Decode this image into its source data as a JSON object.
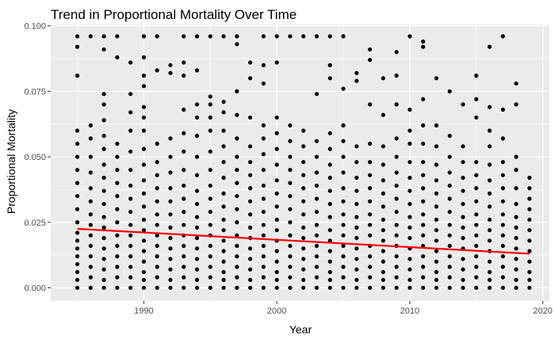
{
  "chart_data": {
    "type": "scatter",
    "title": "Trend in Proportional Mortality Over Time",
    "xlabel": "Year",
    "ylabel": "Proportional Mortality",
    "xlim": [
      1983,
      2020.5
    ],
    "ylim": [
      -0.005,
      0.1005
    ],
    "x_ticks": [
      1990,
      2000,
      2010,
      2020
    ],
    "x_tick_labels": [
      "1990",
      "2000",
      "2010",
      "2020"
    ],
    "y_ticks": [
      0.0,
      0.025,
      0.05,
      0.075,
      0.1
    ],
    "y_tick_labels": [
      "0.000",
      "0.025",
      "0.050",
      "0.075",
      "0.100"
    ],
    "grid": true,
    "legend": "none",
    "years": [
      1985,
      1986,
      1987,
      1988,
      1989,
      1990,
      1991,
      1992,
      1993,
      1994,
      1995,
      1996,
      1997,
      1998,
      1999,
      2000,
      2001,
      2002,
      2003,
      2004,
      2005,
      2006,
      2007,
      2008,
      2009,
      2010,
      2011,
      2012,
      2013,
      2014,
      2015,
      2016,
      2017,
      2018,
      2019
    ],
    "series": [
      {
        "values_by_year": [
          [
            0.0,
            0.003,
            0.006,
            0.009,
            0.012,
            0.015,
            0.018,
            0.021,
            0.025,
            0.03,
            0.035,
            0.04,
            0.045,
            0.05,
            0.055,
            0.06,
            0.081,
            0.092,
            0.096
          ],
          [
            0.0,
            0.004,
            0.008,
            0.012,
            0.016,
            0.02,
            0.024,
            0.028,
            0.033,
            0.038,
            0.044,
            0.05,
            0.057,
            0.062,
            0.096
          ],
          [
            0.0,
            0.003,
            0.007,
            0.011,
            0.015,
            0.019,
            0.023,
            0.027,
            0.032,
            0.037,
            0.042,
            0.047,
            0.053,
            0.058,
            0.064,
            0.07,
            0.074,
            0.091,
            0.096
          ],
          [
            0.0,
            0.004,
            0.008,
            0.012,
            0.016,
            0.02,
            0.025,
            0.03,
            0.035,
            0.04,
            0.045,
            0.05,
            0.055,
            0.088,
            0.096
          ],
          [
            0.0,
            0.004,
            0.008,
            0.012,
            0.016,
            0.02,
            0.024,
            0.029,
            0.034,
            0.039,
            0.045,
            0.052,
            0.06,
            0.067,
            0.074,
            0.086
          ],
          [
            0.0,
            0.003,
            0.006,
            0.01,
            0.014,
            0.018,
            0.022,
            0.026,
            0.031,
            0.036,
            0.041,
            0.047,
            0.053,
            0.06,
            0.065,
            0.069,
            0.077,
            0.081,
            0.088,
            0.096
          ],
          [
            0.0,
            0.004,
            0.008,
            0.012,
            0.016,
            0.02,
            0.024,
            0.028,
            0.033,
            0.038,
            0.043,
            0.048,
            0.055,
            0.083,
            0.096
          ],
          [
            0.0,
            0.003,
            0.007,
            0.011,
            0.015,
            0.019,
            0.023,
            0.028,
            0.033,
            0.038,
            0.044,
            0.05,
            0.057,
            0.085,
            0.082
          ],
          [
            0.0,
            0.004,
            0.008,
            0.012,
            0.016,
            0.02,
            0.024,
            0.029,
            0.034,
            0.039,
            0.045,
            0.052,
            0.059,
            0.068,
            0.081,
            0.086,
            0.096
          ],
          [
            0.0,
            0.003,
            0.007,
            0.011,
            0.015,
            0.019,
            0.023,
            0.027,
            0.032,
            0.037,
            0.043,
            0.05,
            0.058,
            0.065,
            0.07,
            0.083,
            0.096
          ],
          [
            0.0,
            0.004,
            0.008,
            0.012,
            0.016,
            0.02,
            0.024,
            0.029,
            0.034,
            0.039,
            0.045,
            0.052,
            0.06,
            0.065,
            0.07,
            0.073,
            0.096
          ],
          [
            0.0,
            0.003,
            0.006,
            0.01,
            0.014,
            0.018,
            0.022,
            0.026,
            0.031,
            0.036,
            0.042,
            0.048,
            0.054,
            0.06,
            0.067,
            0.071,
            0.096
          ],
          [
            0.0,
            0.004,
            0.008,
            0.012,
            0.016,
            0.02,
            0.025,
            0.03,
            0.035,
            0.04,
            0.045,
            0.05,
            0.057,
            0.066,
            0.075,
            0.093,
            0.096
          ],
          [
            0.0,
            0.003,
            0.007,
            0.011,
            0.015,
            0.019,
            0.023,
            0.028,
            0.033,
            0.038,
            0.043,
            0.048,
            0.054,
            0.065,
            0.08,
            0.086
          ],
          [
            0.0,
            0.004,
            0.008,
            0.012,
            0.016,
            0.02,
            0.024,
            0.029,
            0.034,
            0.039,
            0.045,
            0.051,
            0.057,
            0.062,
            0.078,
            0.085,
            0.096
          ],
          [
            0.0,
            0.003,
            0.006,
            0.01,
            0.014,
            0.018,
            0.022,
            0.026,
            0.031,
            0.036,
            0.041,
            0.047,
            0.053,
            0.059,
            0.065,
            0.086,
            0.096
          ],
          [
            0.0,
            0.004,
            0.008,
            0.012,
            0.016,
            0.02,
            0.025,
            0.03,
            0.035,
            0.04,
            0.045,
            0.05,
            0.056,
            0.062,
            0.096
          ],
          [
            0.0,
            0.003,
            0.007,
            0.011,
            0.015,
            0.019,
            0.023,
            0.028,
            0.033,
            0.038,
            0.043,
            0.048,
            0.054,
            0.06,
            0.096
          ],
          [
            0.0,
            0.004,
            0.008,
            0.012,
            0.016,
            0.02,
            0.024,
            0.029,
            0.034,
            0.039,
            0.044,
            0.05,
            0.056,
            0.074,
            0.096
          ],
          [
            0.0,
            0.003,
            0.006,
            0.01,
            0.014,
            0.018,
            0.022,
            0.027,
            0.032,
            0.037,
            0.042,
            0.047,
            0.053,
            0.059,
            0.08,
            0.085,
            0.096
          ],
          [
            0.0,
            0.004,
            0.008,
            0.012,
            0.016,
            0.02,
            0.024,
            0.028,
            0.033,
            0.038,
            0.044,
            0.05,
            0.056,
            0.062,
            0.076,
            0.096
          ],
          [
            0.0,
            0.003,
            0.007,
            0.011,
            0.015,
            0.019,
            0.023,
            0.027,
            0.032,
            0.037,
            0.042,
            0.048,
            0.054,
            0.079,
            0.082
          ],
          [
            0.0,
            0.004,
            0.008,
            0.012,
            0.016,
            0.02,
            0.024,
            0.028,
            0.033,
            0.038,
            0.043,
            0.048,
            0.055,
            0.07,
            0.087,
            0.091
          ],
          [
            0.0,
            0.003,
            0.006,
            0.01,
            0.014,
            0.018,
            0.022,
            0.026,
            0.031,
            0.036,
            0.041,
            0.047,
            0.054,
            0.066,
            0.08
          ],
          [
            0.0,
            0.004,
            0.008,
            0.012,
            0.016,
            0.02,
            0.024,
            0.029,
            0.034,
            0.039,
            0.044,
            0.05,
            0.057,
            0.07,
            0.081,
            0.09
          ],
          [
            0.0,
            0.003,
            0.007,
            0.011,
            0.015,
            0.019,
            0.023,
            0.027,
            0.032,
            0.037,
            0.042,
            0.048,
            0.055,
            0.06,
            0.068,
            0.096
          ],
          [
            0.0,
            0.004,
            0.008,
            0.012,
            0.016,
            0.02,
            0.024,
            0.028,
            0.033,
            0.038,
            0.043,
            0.048,
            0.055,
            0.062,
            0.072,
            0.092,
            0.094
          ],
          [
            0.0,
            0.003,
            0.006,
            0.01,
            0.014,
            0.018,
            0.022,
            0.026,
            0.031,
            0.036,
            0.041,
            0.047,
            0.054,
            0.062,
            0.08
          ],
          [
            0.0,
            0.004,
            0.008,
            0.012,
            0.016,
            0.02,
            0.024,
            0.029,
            0.034,
            0.039,
            0.044,
            0.05,
            0.058,
            0.075
          ],
          [
            0.0,
            0.003,
            0.007,
            0.011,
            0.015,
            0.019,
            0.023,
            0.027,
            0.032,
            0.037,
            0.042,
            0.048,
            0.054,
            0.07
          ],
          [
            0.0,
            0.004,
            0.008,
            0.012,
            0.016,
            0.02,
            0.024,
            0.028,
            0.033,
            0.038,
            0.043,
            0.048,
            0.065,
            0.072,
            0.081
          ],
          [
            0.0,
            0.003,
            0.006,
            0.01,
            0.014,
            0.018,
            0.022,
            0.026,
            0.031,
            0.036,
            0.041,
            0.047,
            0.054,
            0.06,
            0.069,
            0.092
          ],
          [
            0.0,
            0.004,
            0.008,
            0.012,
            0.016,
            0.02,
            0.024,
            0.028,
            0.033,
            0.038,
            0.043,
            0.048,
            0.057,
            0.068,
            0.096
          ],
          [
            0.0,
            0.003,
            0.007,
            0.011,
            0.015,
            0.019,
            0.023,
            0.027,
            0.032,
            0.038,
            0.045,
            0.05,
            0.07,
            0.078
          ],
          [
            0.0,
            0.003,
            0.006,
            0.01,
            0.014,
            0.018,
            0.022,
            0.026,
            0.03,
            0.034,
            0.038,
            0.042
          ]
        ],
        "color": "#000000"
      },
      {
        "type": "line",
        "x": [
          1985,
          2019
        ],
        "y": [
          0.0225,
          0.013
        ],
        "color": "#ff0000"
      }
    ]
  },
  "style": {
    "panel_background": "#ebebeb",
    "gridline_color": "#ffffff",
    "point_color": "#000000",
    "trend_color": "#ff0000",
    "axis_text_color": "#4d4d4d",
    "title_color": "#000000"
  }
}
